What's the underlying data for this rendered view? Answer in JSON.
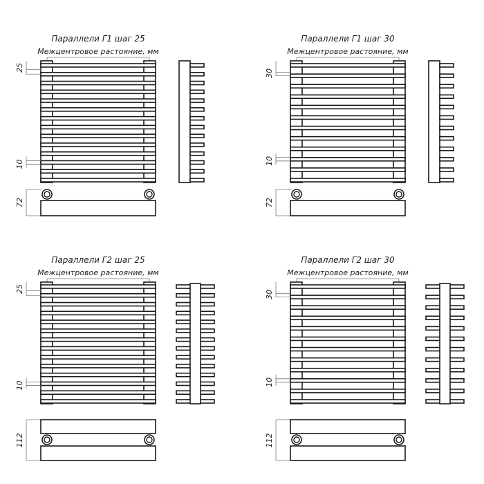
{
  "panels": [
    {
      "title": "Параллели Г1 шаг 25",
      "span_label": "Межцентровое растояние, мм",
      "pitch": "25",
      "bar_dim": "10",
      "depth": "72",
      "type": "G1"
    },
    {
      "title": "Параллели Г1 шаг 30",
      "span_label": "Межцентровое растояние, мм",
      "pitch": "30",
      "bar_dim": "10",
      "depth": "72",
      "type": "G1"
    },
    {
      "title": "Параллели Г2 шаг 25",
      "span_label": "Межцентровое растояние, мм",
      "pitch": "25",
      "bar_dim": "10",
      "depth": "112",
      "type": "G2"
    },
    {
      "title": "Параллели Г2 шаг 30",
      "span_label": "Межцентровое растояние, мм",
      "pitch": "30",
      "bar_dim": "10",
      "depth": "112",
      "type": "G2"
    }
  ],
  "colors": {
    "line": "#1a1a1a",
    "dim": "#777777"
  }
}
